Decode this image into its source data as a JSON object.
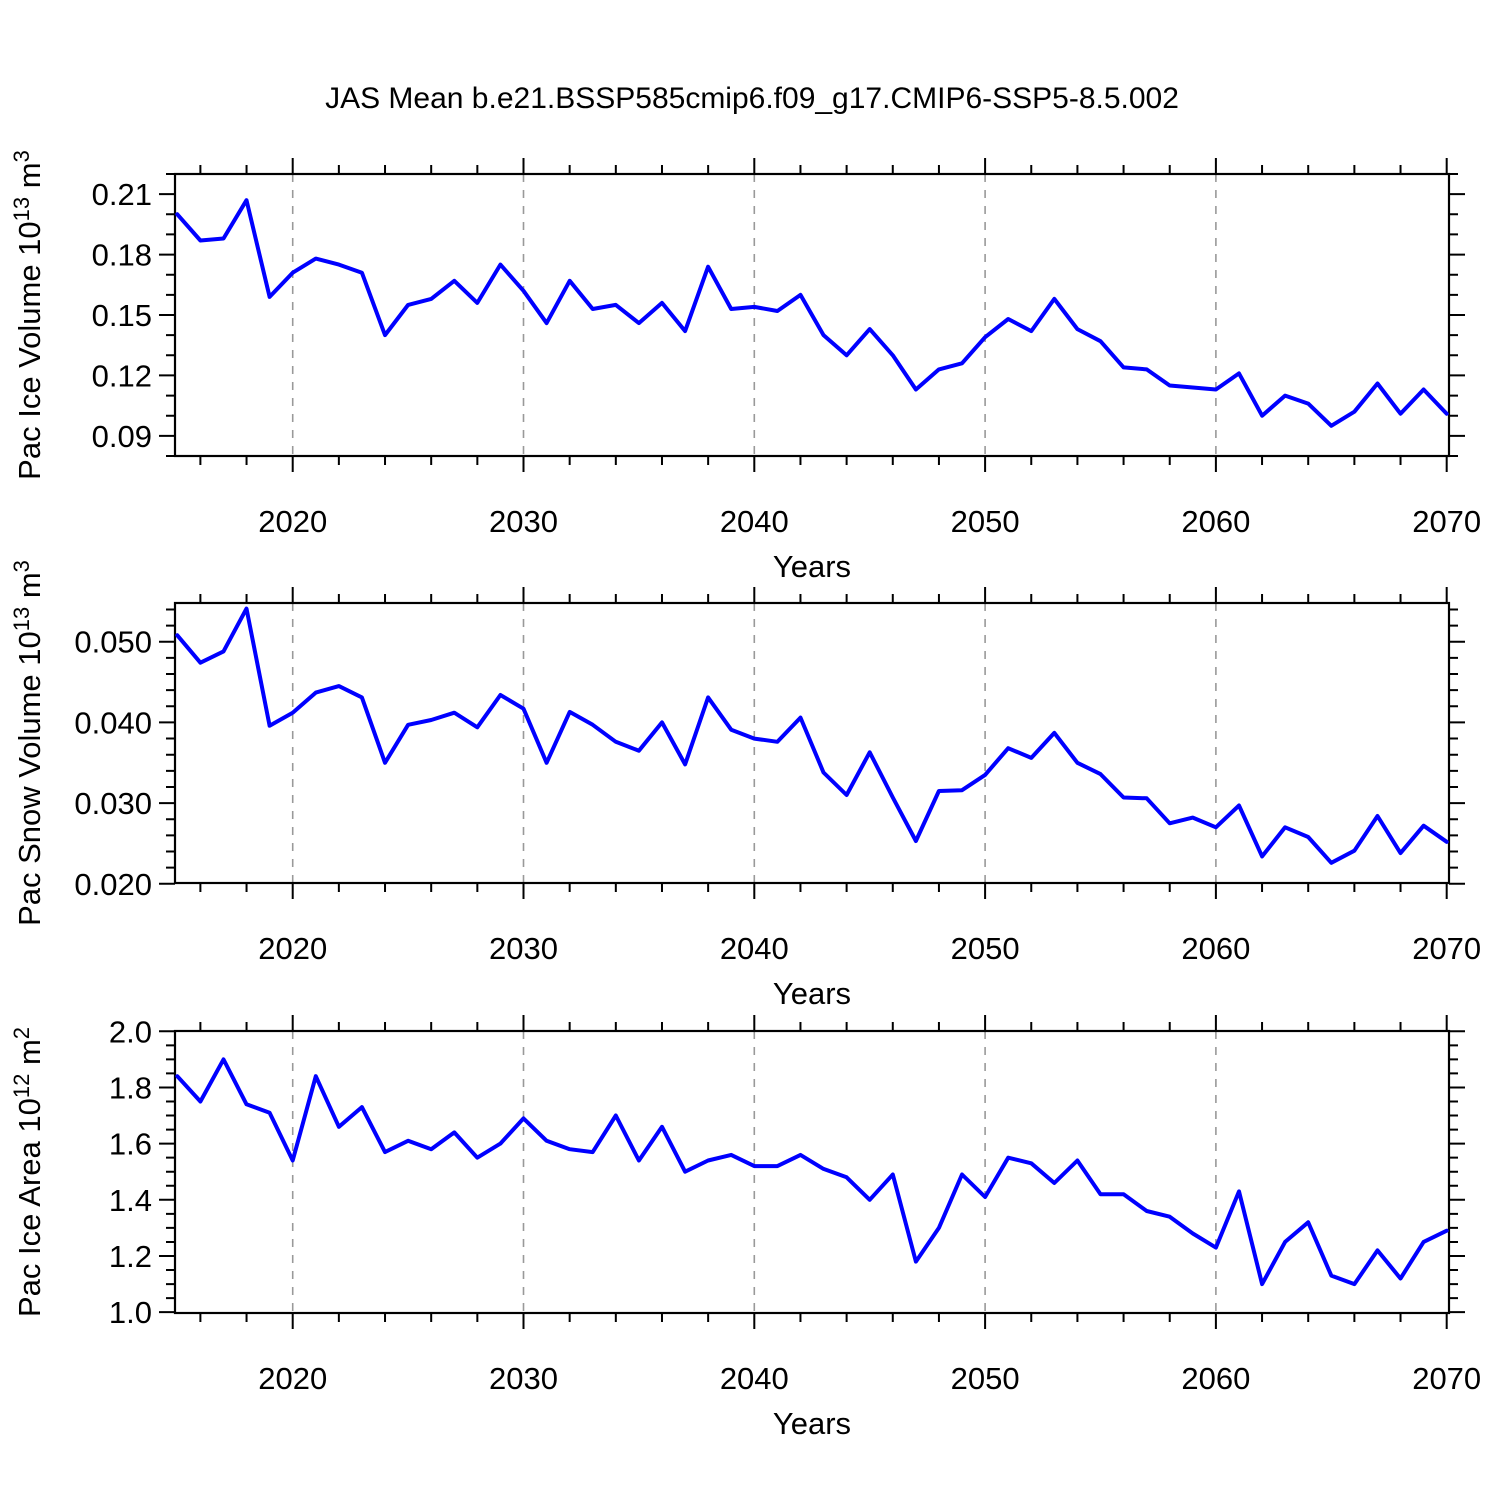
{
  "chart_title": "JAS Mean b.e21.BSSP585cmip6.f09_g17.CMIP6-SSP5-8.5.002",
  "colors": {
    "line": "#0000ff",
    "axis": "#000000",
    "grid": "#999999",
    "background": "#ffffff",
    "text": "#000000"
  },
  "chart_data": [
    {
      "type": "line",
      "panel": 1,
      "ylabel": "Pac Ice Volume 10^13 m^3",
      "ylabel_parts": [
        {
          "text": "Pac Ice Volume 10",
          "sup": false
        },
        {
          "text": "13",
          "sup": true
        },
        {
          "text": " m",
          "sup": false
        },
        {
          "text": "3",
          "sup": true
        }
      ],
      "xlabel": "Years",
      "x_start": 2015,
      "x_end": 2070,
      "values": [
        0.2,
        0.187,
        0.188,
        0.207,
        0.159,
        0.171,
        0.178,
        0.175,
        0.171,
        0.14,
        0.155,
        0.158,
        0.167,
        0.156,
        0.175,
        0.162,
        0.146,
        0.167,
        0.153,
        0.155,
        0.146,
        0.156,
        0.142,
        0.174,
        0.153,
        0.154,
        0.152,
        0.16,
        0.14,
        0.13,
        0.143,
        0.13,
        0.113,
        0.123,
        0.126,
        0.139,
        0.148,
        0.142,
        0.158,
        0.143,
        0.137,
        0.124,
        0.123,
        0.115,
        0.114,
        0.113,
        0.121,
        0.1,
        0.11,
        0.106,
        0.095,
        0.102,
        0.116,
        0.101,
        0.113,
        0.101
      ],
      "xlim": [
        2014.9,
        2070.1
      ],
      "ylim": [
        0.08,
        0.22
      ],
      "xtick_years": [
        2020,
        2030,
        2040,
        2050,
        2060,
        2070
      ],
      "xtick_labels": [
        "2020",
        "2030",
        "2040",
        "2050",
        "2060",
        "2070"
      ],
      "x_minor_step": 2,
      "ytick_values": [
        0.21,
        0.18,
        0.15,
        0.12,
        0.09
      ],
      "ytick_labels": [
        "0.21",
        "0.18",
        "0.15",
        "0.12",
        "0.09"
      ],
      "y_minor_step": 0.01,
      "grid_years": [
        2020,
        2030,
        2040,
        2050,
        2060
      ],
      "grid_on": true
    },
    {
      "type": "line",
      "panel": 2,
      "ylabel": "Pac Snow Volume 10^13 m^3",
      "ylabel_parts": [
        {
          "text": "Pac Snow Volume 10",
          "sup": false
        },
        {
          "text": "13",
          "sup": true
        },
        {
          "text": " m",
          "sup": false
        },
        {
          "text": "3",
          "sup": true
        }
      ],
      "xlabel": "Years",
      "x_start": 2015,
      "x_end": 2070,
      "values": [
        0.0508,
        0.0474,
        0.0488,
        0.0541,
        0.0396,
        0.0412,
        0.0437,
        0.0445,
        0.0431,
        0.035,
        0.0397,
        0.0403,
        0.0412,
        0.0394,
        0.0434,
        0.0417,
        0.035,
        0.0413,
        0.0397,
        0.0376,
        0.0365,
        0.04,
        0.0348,
        0.0431,
        0.0391,
        0.038,
        0.0376,
        0.0406,
        0.0338,
        0.031,
        0.0363,
        0.0307,
        0.0253,
        0.0315,
        0.0316,
        0.0335,
        0.0368,
        0.0356,
        0.0387,
        0.035,
        0.0336,
        0.0307,
        0.0306,
        0.0275,
        0.0282,
        0.027,
        0.0297,
        0.0234,
        0.027,
        0.0258,
        0.0226,
        0.0241,
        0.0284,
        0.0238,
        0.0272,
        0.0252
      ],
      "xlim": [
        2014.9,
        2070.1
      ],
      "ylim": [
        0.0201,
        0.0548
      ],
      "xtick_years": [
        2020,
        2030,
        2040,
        2050,
        2060,
        2070
      ],
      "xtick_labels": [
        "2020",
        "2030",
        "2040",
        "2050",
        "2060",
        "2070"
      ],
      "x_minor_step": 2,
      "ytick_values": [
        0.05,
        0.04,
        0.03,
        0.02
      ],
      "ytick_labels": [
        "0.050",
        "0.040",
        "0.030",
        "0.020"
      ],
      "y_minor_step": 0.002,
      "grid_years": [
        2020,
        2030,
        2040,
        2050,
        2060
      ],
      "grid_on": true
    },
    {
      "type": "line",
      "panel": 3,
      "ylabel": "Pac Ice Area 10^12 m^2",
      "ylabel_parts": [
        {
          "text": "Pac Ice Area 10",
          "sup": false
        },
        {
          "text": "12",
          "sup": true
        },
        {
          "text": " m",
          "sup": false
        },
        {
          "text": "2",
          "sup": true
        }
      ],
      "xlabel": "Years",
      "x_start": 2015,
      "x_end": 2070,
      "values": [
        1.84,
        1.75,
        1.9,
        1.74,
        1.71,
        1.54,
        1.84,
        1.66,
        1.73,
        1.57,
        1.61,
        1.58,
        1.64,
        1.55,
        1.6,
        1.69,
        1.61,
        1.58,
        1.57,
        1.7,
        1.54,
        1.66,
        1.5,
        1.54,
        1.56,
        1.52,
        1.52,
        1.56,
        1.51,
        1.48,
        1.4,
        1.49,
        1.18,
        1.3,
        1.49,
        1.41,
        1.55,
        1.53,
        1.46,
        1.54,
        1.42,
        1.42,
        1.36,
        1.34,
        1.28,
        1.23,
        1.43,
        1.1,
        1.25,
        1.32,
        1.13,
        1.1,
        1.22,
        1.12,
        1.25,
        1.29
      ],
      "xlim": [
        2014.9,
        2070.1
      ],
      "ylim": [
        0.997,
        2.001
      ],
      "xtick_years": [
        2020,
        2030,
        2040,
        2050,
        2060,
        2070
      ],
      "xtick_labels": [
        "2020",
        "2030",
        "2040",
        "2050",
        "2060",
        "2070"
      ],
      "x_minor_step": 2,
      "ytick_values": [
        2.0,
        1.8,
        1.6,
        1.4,
        1.2,
        1.0
      ],
      "ytick_labels": [
        "2.0",
        "1.8",
        "1.6",
        "1.4",
        "1.2",
        "1.0"
      ],
      "y_minor_step": 0.05,
      "grid_years": [
        2020,
        2030,
        2040,
        2050,
        2060
      ],
      "grid_on": true
    }
  ]
}
